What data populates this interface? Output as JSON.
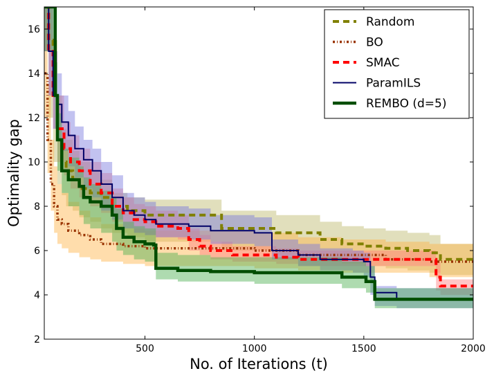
{
  "chart_data": {
    "type": "line",
    "title": "",
    "xlabel": "No. of Iterations (t)",
    "ylabel": "Optimality gap",
    "xlim": [
      40,
      2000
    ],
    "ylim": [
      2,
      17
    ],
    "xticks": [
      500,
      1000,
      1500,
      2000
    ],
    "yticks": [
      2,
      4,
      6,
      8,
      10,
      12,
      14,
      16
    ],
    "legend_position": "top-right",
    "series": [
      {
        "name": "Random",
        "color": "#808000",
        "band_color": "#bdb76b",
        "style": "dashed",
        "x": [
          40,
          60,
          80,
          100,
          120,
          140,
          170,
          200,
          250,
          300,
          350,
          420,
          500,
          600,
          700,
          780,
          850,
          1000,
          1100,
          1260,
          1300,
          1400,
          1500,
          1600,
          1700,
          1800,
          1850,
          2000
        ],
        "y": [
          17,
          15.5,
          13,
          11,
          10,
          9.6,
          9.2,
          8.8,
          8.6,
          8.4,
          8.0,
          7.8,
          7.6,
          7.6,
          7.6,
          7.6,
          7.0,
          7.0,
          6.8,
          6.8,
          6.5,
          6.3,
          6.2,
          6.1,
          6.0,
          5.9,
          5.6,
          5.6
        ],
        "lower": [
          15,
          12,
          10,
          9,
          8.5,
          8,
          7.8,
          7.5,
          7.3,
          7.0,
          6.8,
          6.6,
          6.4,
          6.4,
          6.4,
          6.4,
          6.0,
          6.0,
          5.8,
          5.8,
          5.5,
          5.4,
          5.3,
          5.2,
          5.1,
          5.0,
          4.9,
          4.9
        ],
        "upper": [
          17,
          17,
          15.5,
          13,
          11.5,
          11,
          10.5,
          10,
          9.6,
          9.2,
          8.6,
          8.4,
          8.3,
          8.3,
          8.3,
          8.3,
          7.8,
          7.8,
          7.6,
          7.6,
          7.3,
          7.1,
          7.0,
          6.9,
          6.8,
          6.7,
          6.3,
          6.3
        ]
      },
      {
        "name": "BO",
        "color": "#993300",
        "band_color": "#ffb347",
        "style": "dashdot",
        "x": [
          40,
          55,
          70,
          85,
          100,
          120,
          150,
          200,
          250,
          300,
          400,
          500,
          600,
          800,
          1000,
          1200,
          1400,
          1600,
          1800,
          2000
        ],
        "y": [
          14,
          11,
          9,
          8,
          7.4,
          7.2,
          6.9,
          6.7,
          6.5,
          6.3,
          6.2,
          6.1,
          6.1,
          6.1,
          6.0,
          5.8,
          5.8,
          5.6,
          5.5,
          5.4
        ],
        "lower": [
          12,
          9.5,
          7.8,
          6.8,
          6.3,
          6.1,
          5.9,
          5.7,
          5.6,
          5.5,
          5.4,
          5.3,
          5.3,
          5.3,
          5.2,
          5.1,
          5.0,
          5.0,
          4.8,
          4.8
        ],
        "upper": [
          17,
          13.5,
          11,
          9.8,
          9.0,
          8.6,
          8.2,
          7.8,
          7.5,
          7.2,
          7.0,
          6.9,
          6.9,
          6.9,
          6.8,
          6.6,
          6.5,
          6.4,
          6.3,
          6.2
        ]
      },
      {
        "name": "SMAC",
        "color": "#ff0000",
        "band_color": "#ff8080",
        "style": "dashed",
        "x": [
          40,
          60,
          80,
          100,
          130,
          160,
          200,
          250,
          300,
          350,
          400,
          450,
          500,
          550,
          650,
          700,
          750,
          800,
          850,
          900,
          1000,
          1100,
          1200,
          1300,
          1400,
          1500,
          1600,
          1700,
          1800,
          1830,
          1850,
          2000
        ],
        "y": [
          17,
          15,
          13,
          11.5,
          10.6,
          10.0,
          9.6,
          9.0,
          8.6,
          8.0,
          7.7,
          7.4,
          7.3,
          7.1,
          7.0,
          6.5,
          6.2,
          6.0,
          6.0,
          5.8,
          5.8,
          5.7,
          5.6,
          5.6,
          5.6,
          5.6,
          5.6,
          5.6,
          5.6,
          4.8,
          4.4,
          4.35
        ],
        "lower": [
          15,
          13,
          11.5,
          10,
          9.4,
          8.8,
          8.4,
          8.0,
          7.7,
          7.3,
          7.0,
          6.8,
          6.7,
          6.6,
          6.5,
          6.0,
          5.8,
          5.6,
          5.6,
          5.5,
          5.5,
          5.4,
          5.3,
          5.3,
          5.3,
          5.3,
          5.3,
          5.3,
          5.3,
          4.2,
          4.0,
          3.9
        ],
        "upper": [
          17,
          17,
          15,
          13,
          11.8,
          11.2,
          10.6,
          10.0,
          9.5,
          8.8,
          8.4,
          8.1,
          8.0,
          7.8,
          7.6,
          7.0,
          6.7,
          6.4,
          6.4,
          6.2,
          6.2,
          6.1,
          6.0,
          6.0,
          6.0,
          6.0,
          6.0,
          6.0,
          6.0,
          5.6,
          4.7,
          4.7
        ]
      },
      {
        "name": "ParamILS",
        "color": "#000066",
        "band_color": "#7777dd",
        "style": "solid",
        "x": [
          40,
          60,
          80,
          100,
          120,
          150,
          180,
          220,
          260,
          300,
          350,
          400,
          450,
          500,
          550,
          700,
          800,
          1000,
          1070,
          1080,
          1200,
          1300,
          1450,
          1500,
          1530,
          1550,
          1600,
          1650,
          2000
        ],
        "y": [
          17,
          15,
          13,
          12.6,
          11.8,
          11.2,
          10.6,
          10.1,
          9.6,
          9.0,
          8.4,
          7.8,
          7.6,
          7.4,
          7.2,
          7.1,
          6.9,
          6.8,
          6.8,
          6.0,
          5.8,
          5.6,
          5.6,
          5.5,
          4.8,
          4.1,
          4.1,
          3.8,
          3.8
        ],
        "lower": [
          15,
          13,
          11.5,
          11,
          10.5,
          9.8,
          9.3,
          8.8,
          8.4,
          7.8,
          7.4,
          7.0,
          6.8,
          6.7,
          6.6,
          6.5,
          6.3,
          6.2,
          6.2,
          5.6,
          5.3,
          5.1,
          5.0,
          4.8,
          4.0,
          3.5,
          3.5,
          3.4,
          3.4
        ],
        "upper": [
          17,
          17,
          15,
          14,
          13.0,
          12.3,
          11.6,
          11.0,
          10.6,
          10.0,
          9.4,
          8.6,
          8.4,
          8.2,
          8.0,
          7.9,
          7.6,
          7.5,
          7.5,
          6.5,
          6.3,
          6.1,
          6.0,
          5.9,
          5.3,
          4.4,
          4.4,
          4.3,
          4.3
        ]
      },
      {
        "name": "REMBO (d=5)",
        "color": "#004d00",
        "band_color": "#4caf50",
        "style": "solid",
        "x": [
          40,
          60,
          80,
          90,
          100,
          120,
          150,
          200,
          220,
          250,
          300,
          350,
          370,
          400,
          450,
          500,
          540,
          550,
          650,
          800,
          1000,
          1200,
          1300,
          1400,
          1480,
          1500,
          1510,
          1530,
          1550,
          1600,
          1700,
          2000
        ],
        "y": [
          17,
          17,
          17,
          13,
          11.0,
          9.6,
          9.2,
          8.9,
          8.4,
          8.2,
          8.0,
          7.6,
          7.0,
          6.6,
          6.4,
          6.3,
          6.25,
          5.2,
          5.1,
          5.05,
          5.0,
          5.0,
          5.0,
          4.8,
          4.8,
          4.8,
          4.6,
          4.6,
          3.8,
          3.8,
          3.8,
          3.75
        ],
        "lower": [
          15,
          15,
          15,
          11.5,
          9.6,
          8.6,
          8.0,
          7.6,
          7.2,
          7.0,
          6.8,
          6.4,
          6.0,
          5.8,
          5.6,
          5.5,
          5.5,
          4.7,
          4.6,
          4.6,
          4.5,
          4.5,
          4.5,
          4.3,
          4.3,
          4.3,
          4.1,
          4.1,
          3.4,
          3.4,
          3.4,
          3.3
        ],
        "upper": [
          17,
          17,
          17,
          14.5,
          12.2,
          10.6,
          10.2,
          9.8,
          9.3,
          9.0,
          8.7,
          8.4,
          7.9,
          7.3,
          7.1,
          7.0,
          7.0,
          5.9,
          5.8,
          5.7,
          5.7,
          5.7,
          5.7,
          5.5,
          5.5,
          5.5,
          5.3,
          5.3,
          4.3,
          4.3,
          4.3,
          4.2
        ]
      }
    ]
  }
}
